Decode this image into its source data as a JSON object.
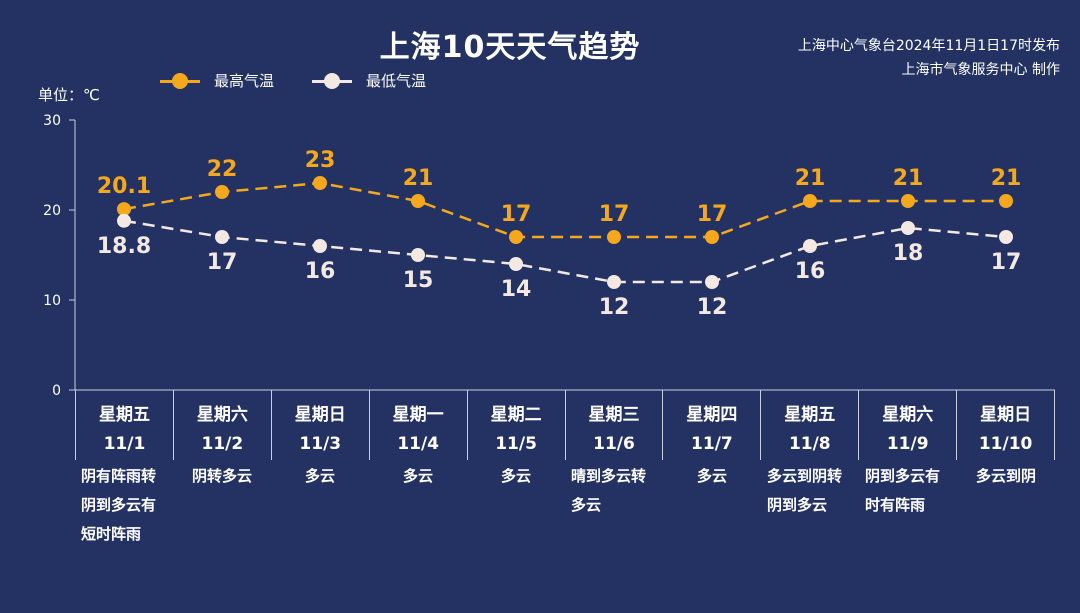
{
  "title": "上海10天天气趋势",
  "issuer": {
    "line1": "上海中心气象台2024年11月1日17时发布",
    "line2": "上海市气象服务中心 制作"
  },
  "unit_label": "单位：℃",
  "legend": {
    "high": "最高气温",
    "low": "最低气温"
  },
  "colors": {
    "background": "#233263",
    "high": "#f5a81c",
    "low": "#f3e9e2",
    "axis": "#c9cfe0"
  },
  "days": [
    {
      "weekday": "星期五",
      "date": "11/1",
      "weather": "阴有阵雨转阴到多云有短时阵雨"
    },
    {
      "weekday": "星期六",
      "date": "11/2",
      "weather": "阴转多云"
    },
    {
      "weekday": "星期日",
      "date": "11/3",
      "weather": "多云"
    },
    {
      "weekday": "星期一",
      "date": "11/4",
      "weather": "多云"
    },
    {
      "weekday": "星期二",
      "date": "11/5",
      "weather": "多云"
    },
    {
      "weekday": "星期三",
      "date": "11/6",
      "weather": "晴到多云转多云"
    },
    {
      "weekday": "星期四",
      "date": "11/7",
      "weather": "多云"
    },
    {
      "weekday": "星期五",
      "date": "11/8",
      "weather": "多云到阴转阴到多云"
    },
    {
      "weekday": "星期六",
      "date": "11/9",
      "weather": "阴到多云有时有阵雨"
    },
    {
      "weekday": "星期日",
      "date": "11/10",
      "weather": "多云到阴"
    }
  ],
  "chart_data": {
    "type": "line",
    "categories": [
      "11/1",
      "11/2",
      "11/3",
      "11/4",
      "11/5",
      "11/6",
      "11/7",
      "11/8",
      "11/9",
      "11/10"
    ],
    "series": [
      {
        "name": "最高气温",
        "values": [
          20.1,
          22,
          23,
          21,
          17,
          17,
          17,
          21,
          21,
          21
        ],
        "labels": [
          "20.1",
          "22",
          "23",
          "21",
          "17",
          "17",
          "17",
          "21",
          "21",
          "21"
        ]
      },
      {
        "name": "最低气温",
        "values": [
          18.8,
          17,
          16,
          15,
          14,
          12,
          12,
          16,
          18,
          17
        ],
        "labels": [
          "18.8",
          "17",
          "16",
          "15",
          "14",
          "12",
          "12",
          "16",
          "18",
          "17"
        ]
      }
    ],
    "yticks": [
      "0",
      "10",
      "20",
      "30"
    ],
    "ylim": [
      0,
      30
    ],
    "ylabel": "单位：℃",
    "grid": false,
    "legend_position": "top-left",
    "line_style": "dashed"
  }
}
